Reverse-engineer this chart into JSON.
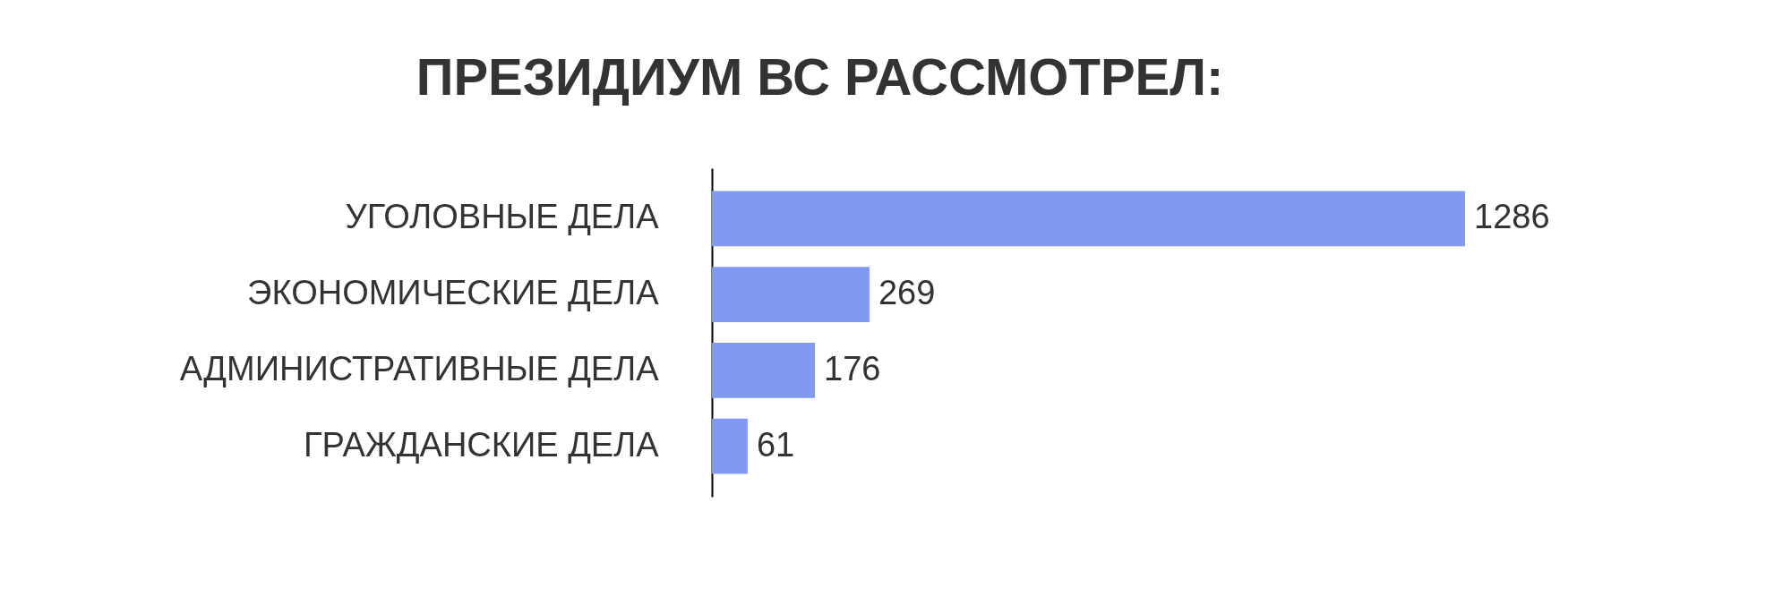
{
  "chart_data": {
    "type": "bar",
    "orientation": "horizontal",
    "title": "ПРЕЗИДИУМ ВС РАССМОТРЕЛ:",
    "categories": [
      "УГОЛОВНЫЕ ДЕЛА",
      "ЭКОНОМИЧЕСКИЕ ДЕЛА",
      "АДМИНИСТРАТИВНЫЕ ДЕЛА",
      "ГРАЖДАНСКИЕ ДЕЛА"
    ],
    "values": [
      1286,
      269,
      176,
      61
    ],
    "color": "#7f9af0",
    "data_labels": true
  }
}
